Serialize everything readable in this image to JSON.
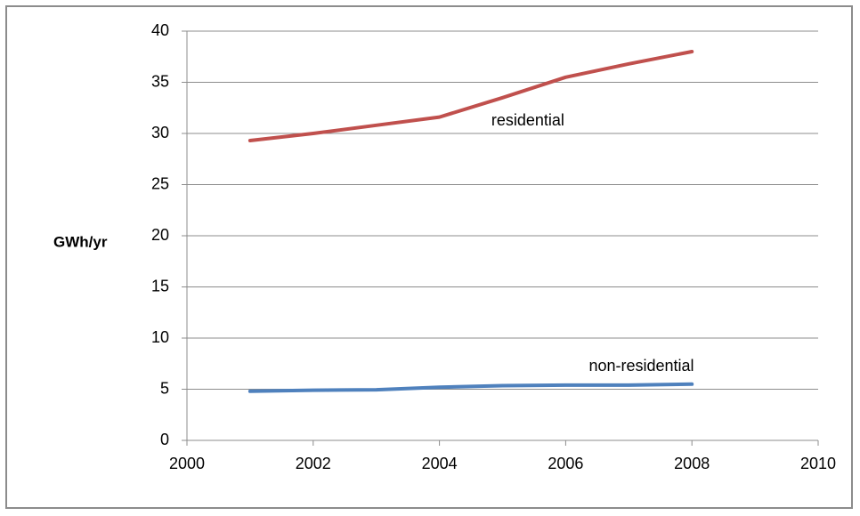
{
  "chart_data": {
    "type": "line",
    "xlabel": "",
    "ylabel": "GWh/yr",
    "xlim": [
      2000,
      2010
    ],
    "ylim": [
      0,
      40
    ],
    "x_ticks": [
      2000,
      2002,
      2004,
      2006,
      2008,
      2010
    ],
    "y_ticks": [
      0,
      5,
      10,
      15,
      20,
      25,
      30,
      35,
      40
    ],
    "grid": "horizontal",
    "series": [
      {
        "name": "residential",
        "color": "#c0504d",
        "x": [
          2001,
          2002,
          2003,
          2004,
          2005,
          2006,
          2007,
          2008
        ],
        "values": [
          29.3,
          30.0,
          30.8,
          31.6,
          33.5,
          35.5,
          36.8,
          38.0
        ],
        "label_anchor": {
          "x": 2005.4,
          "y": 31.2
        }
      },
      {
        "name": "non-residential",
        "color": "#4f81bd",
        "x": [
          2001,
          2002,
          2003,
          2004,
          2005,
          2006,
          2007,
          2008
        ],
        "values": [
          4.8,
          4.9,
          4.95,
          5.2,
          5.35,
          5.4,
          5.4,
          5.5
        ],
        "label_anchor": {
          "x": 2007.2,
          "y": 7.2
        }
      }
    ]
  }
}
